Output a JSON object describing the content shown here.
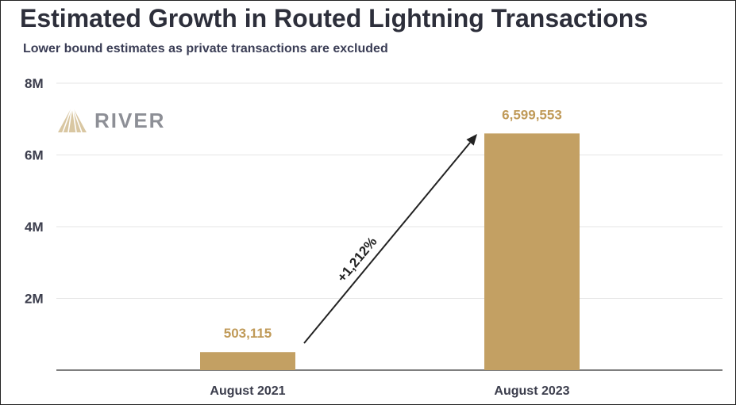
{
  "colors": {
    "bar": "#c3a063",
    "value_label": "#c09a58",
    "gridline": "#e6e6e6",
    "axis": "#555555",
    "arrow": "#222222",
    "logo_mark": "#d9c7a2",
    "logo_text": "#8d8f96"
  },
  "logo": {
    "text": "RIVER",
    "icon": "river-mountain-logo-icon"
  },
  "chart_data": {
    "type": "bar",
    "title": "Estimated Growth in Routed Lightning Transactions",
    "subtitle": "Lower bound estimates as private transactions are excluded",
    "categories": [
      "August 2021",
      "August 2023"
    ],
    "values": [
      503115,
      6599553
    ],
    "value_labels": [
      "503,115",
      "6,599,553"
    ],
    "ylim": [
      0,
      8000000
    ],
    "yticks": [
      {
        "value": 2000000,
        "label": "2M"
      },
      {
        "value": 4000000,
        "label": "4M"
      },
      {
        "value": 6000000,
        "label": "6M"
      },
      {
        "value": 8000000,
        "label": "8M"
      }
    ],
    "grid": true,
    "annotation": {
      "text": "+1,212%",
      "from_category": 0,
      "to_category": 1
    }
  }
}
